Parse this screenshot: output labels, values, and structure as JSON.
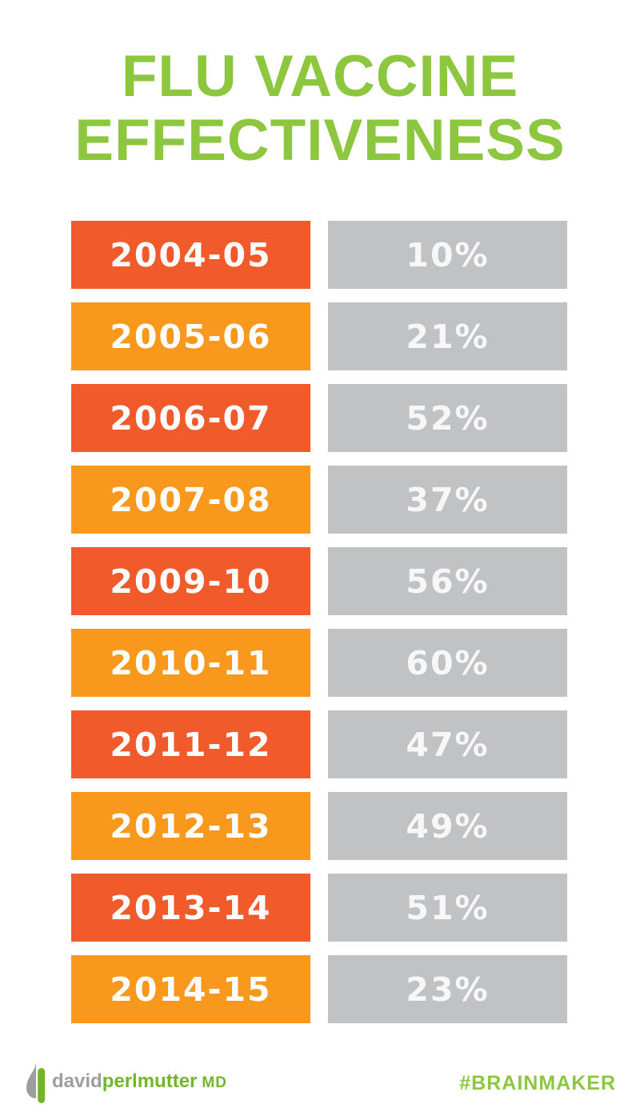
{
  "title": {
    "line1": "FLU VACCINE",
    "line2": "EFFECTIVENESS"
  },
  "chart_data": {
    "type": "table",
    "title": "FLU VACCINE EFFECTIVENESS",
    "categories": [
      "2004-05",
      "2005-06",
      "2006-07",
      "2007-08",
      "2009-10",
      "2010-11",
      "2011-12",
      "2012-13",
      "2013-14",
      "2014-15"
    ],
    "values": [
      10,
      21,
      52,
      37,
      56,
      60,
      47,
      49,
      51,
      23
    ],
    "value_suffix": "%",
    "layout": "two-column rows: season label on alternating orange bars (left), percentage on gray bars (right)"
  },
  "footer": {
    "logo": {
      "part1": "david",
      "part2": "perlmutter",
      "suffix": "MD",
      "icon": "leaf-logo-icon"
    },
    "hashtag": "#BRAINMAKER"
  },
  "colors": {
    "title_green": "#8DC63F",
    "row_red_orange": "#F15B2B",
    "row_orange": "#F8981D",
    "value_gray": "#C1C2C4",
    "value_text": "#F7F7F8",
    "logo_gray": "#9D9D9C",
    "logo_green": "#72B62C",
    "hashtag_green": "#8DC63F"
  }
}
